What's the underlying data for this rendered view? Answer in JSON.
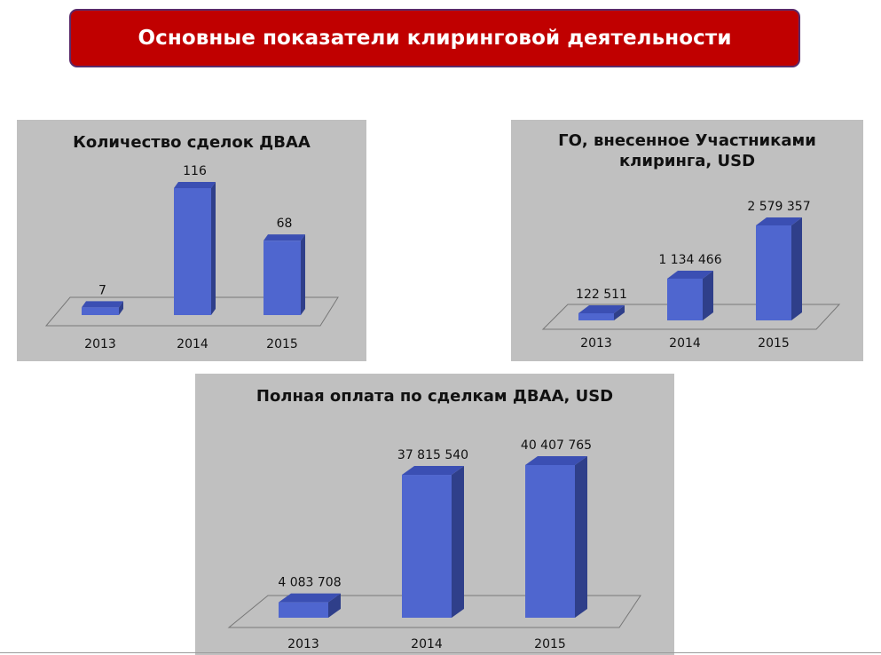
{
  "header": {
    "title": "Основные показатели клиринговой деятельности"
  },
  "colors": {
    "banner": "#c00000",
    "panel": "#c0c0c0",
    "bar_front": "#4f66cf",
    "bar_side": "#2f3f8a",
    "bar_top": "#3b4fb3"
  },
  "chart_data": [
    {
      "type": "bar",
      "title": "Количество сделок ДВАА",
      "categories": [
        "2013",
        "2014",
        "2015"
      ],
      "values": [
        7,
        116,
        68
      ],
      "value_labels": [
        "7",
        "116",
        "68"
      ],
      "three_d": true
    },
    {
      "type": "bar",
      "title": "ГО, внесенное Участниками клиринга, USD",
      "categories": [
        "2013",
        "2014",
        "2015"
      ],
      "values": [
        122511,
        1134466,
        2579357
      ],
      "value_labels": [
        "122 511",
        "1 134 466",
        "2 579 357"
      ],
      "three_d": true
    },
    {
      "type": "bar",
      "title": "Полная оплата по сделкам ДВАА, USD",
      "categories": [
        "2013",
        "2014",
        "2015"
      ],
      "values": [
        4083708,
        37815540,
        40407765
      ],
      "value_labels": [
        "4 083 708",
        "37 815 540",
        "40 407 765"
      ],
      "three_d": true
    }
  ]
}
